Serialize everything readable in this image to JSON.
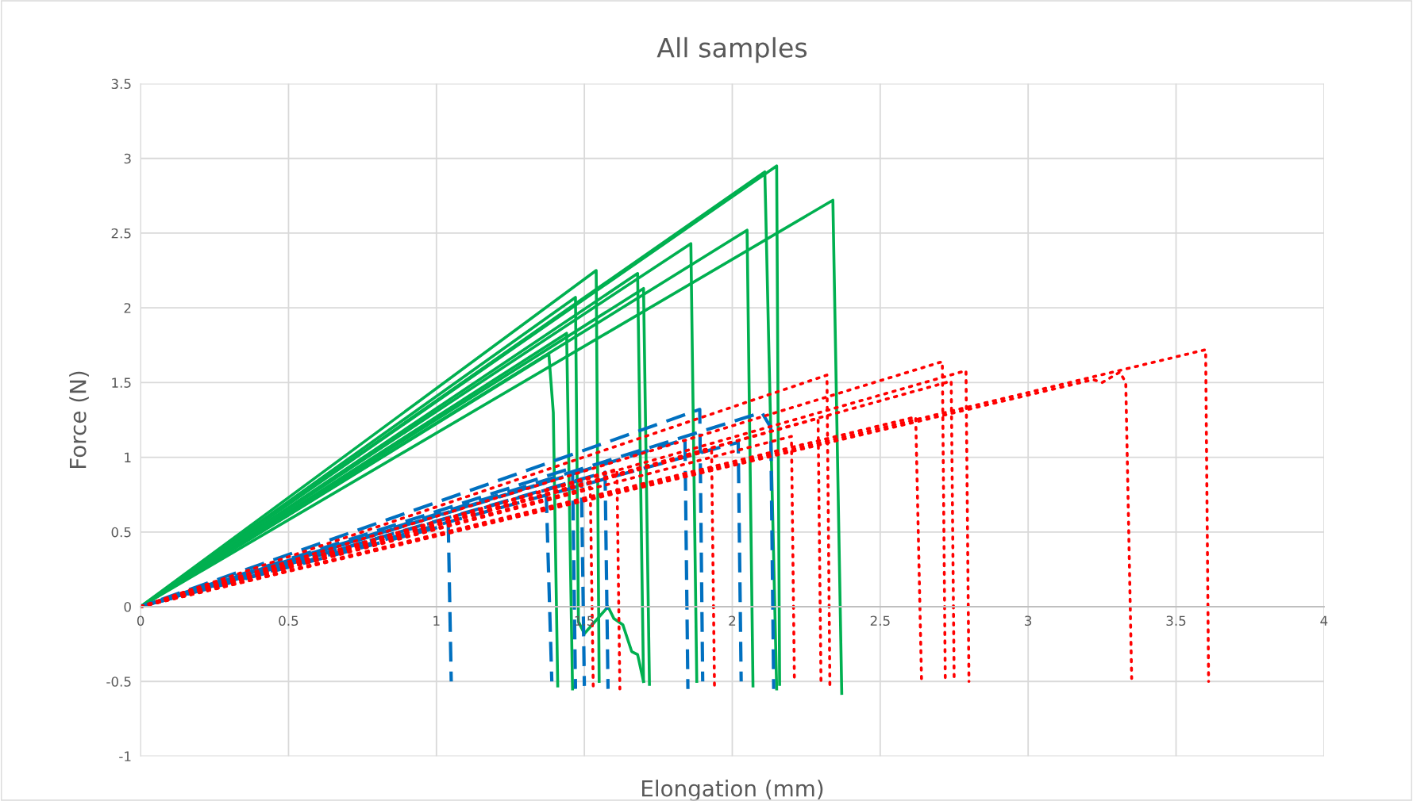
{
  "chart_data": {
    "type": "line",
    "title": "All samples",
    "xlabel": "Elongation (mm)",
    "ylabel": "Force (N)",
    "xlim": [
      0,
      4
    ],
    "xticks": [
      0,
      0.5,
      1,
      1.5,
      2,
      2.5,
      3,
      3.5,
      4
    ],
    "ylim": [
      -1,
      3.5
    ],
    "yticks": [
      -1,
      -0.5,
      0,
      0.5,
      1,
      1.5,
      2,
      2.5,
      3,
      3.5
    ],
    "grid": true,
    "marker": "none",
    "series": [
      {
        "color": "#00b050",
        "line_style": "solid",
        "x": [
          0,
          1.38,
          1.395,
          1.41
        ],
        "values": [
          0,
          1.69,
          1.3,
          -0.53
        ]
      },
      {
        "color": "#00b050",
        "line_style": "solid",
        "x": [
          0,
          1.44,
          1.46
        ],
        "values": [
          0,
          1.83,
          -0.55
        ]
      },
      {
        "color": "#00b050",
        "line_style": "solid",
        "x": [
          0,
          1.47,
          1.48,
          1.5,
          1.58,
          1.6,
          1.63,
          1.66,
          1.68,
          1.7
        ],
        "values": [
          0,
          2.07,
          -0.1,
          -0.18,
          0,
          -0.08,
          -0.12,
          -0.3,
          -0.32,
          -0.5
        ]
      },
      {
        "color": "#00b050",
        "line_style": "solid",
        "x": [
          0,
          1.54,
          1.55
        ],
        "values": [
          0,
          2.25,
          -0.5
        ]
      },
      {
        "color": "#00b050",
        "line_style": "solid",
        "x": [
          0,
          1.68,
          1.7
        ],
        "values": [
          0,
          2.23,
          -0.5
        ]
      },
      {
        "color": "#00b050",
        "line_style": "solid",
        "x": [
          0,
          1.7,
          1.72
        ],
        "values": [
          0,
          2.13,
          -0.52
        ]
      },
      {
        "color": "#00b050",
        "line_style": "solid",
        "x": [
          0,
          1.86,
          1.88
        ],
        "values": [
          0,
          2.43,
          -0.5
        ]
      },
      {
        "color": "#00b050",
        "line_style": "solid",
        "x": [
          0,
          2.05,
          2.07
        ],
        "values": [
          0,
          2.52,
          -0.53
        ]
      },
      {
        "color": "#00b050",
        "line_style": "solid",
        "x": [
          0,
          2.11,
          2.15
        ],
        "values": [
          0,
          2.91,
          -0.55
        ]
      },
      {
        "color": "#00b050",
        "line_style": "solid",
        "x": [
          0,
          2.15,
          2.16
        ],
        "values": [
          0,
          2.95,
          -0.52
        ]
      },
      {
        "color": "#00b050",
        "line_style": "solid",
        "x": [
          0,
          2.34,
          2.37
        ],
        "values": [
          0,
          2.72,
          -0.58
        ]
      },
      {
        "color": "#0070c0",
        "line_style": "dashed",
        "x": [
          0,
          1.04,
          1.05
        ],
        "values": [
          0,
          0.55,
          -0.5
        ]
      },
      {
        "color": "#0070c0",
        "line_style": "dashed",
        "x": [
          0,
          1.37,
          1.39
        ],
        "values": [
          0,
          0.83,
          -0.5
        ]
      },
      {
        "color": "#0070c0",
        "line_style": "dashed",
        "x": [
          0,
          1.46,
          1.47
        ],
        "values": [
          0,
          0.93,
          -0.55
        ]
      },
      {
        "color": "#0070c0",
        "line_style": "dashed",
        "x": [
          0,
          1.49,
          1.5
        ],
        "values": [
          0,
          0.85,
          -0.53
        ]
      },
      {
        "color": "#0070c0",
        "line_style": "dashed",
        "x": [
          0,
          1.57,
          1.58
        ],
        "values": [
          0,
          0.9,
          -0.55
        ]
      },
      {
        "color": "#0070c0",
        "line_style": "dashed",
        "x": [
          0,
          1.84,
          1.85
        ],
        "values": [
          0,
          1.12,
          -0.55
        ]
      },
      {
        "color": "#0070c0",
        "line_style": "dashed",
        "x": [
          0,
          1.89,
          1.9
        ],
        "values": [
          0,
          1.32,
          -0.5
        ]
      },
      {
        "color": "#0070c0",
        "line_style": "dashed",
        "x": [
          0,
          2.02,
          2.03
        ],
        "values": [
          0,
          1.1,
          -0.5
        ]
      },
      {
        "color": "#0070c0",
        "line_style": "dashed",
        "x": [
          0,
          2.1,
          2.13,
          2.14
        ],
        "values": [
          0,
          1.3,
          1.2,
          -0.55
        ]
      },
      {
        "color": "#ff0000",
        "line_style": "dotted",
        "x": [
          0,
          1.52,
          1.53
        ],
        "values": [
          0,
          0.8,
          -0.53
        ]
      },
      {
        "color": "#ff0000",
        "line_style": "dotted",
        "x": [
          0,
          1.61,
          1.62
        ],
        "values": [
          0,
          0.92,
          -0.55
        ]
      },
      {
        "color": "#ff0000",
        "line_style": "dotted",
        "x": [
          0,
          1.93,
          1.94
        ],
        "values": [
          0,
          1.05,
          -0.56
        ]
      },
      {
        "color": "#ff0000",
        "line_style": "dotted",
        "x": [
          0,
          2.2,
          2.21
        ],
        "values": [
          0,
          1.14,
          -0.5
        ]
      },
      {
        "color": "#ff0000",
        "line_style": "dotted",
        "x": [
          0,
          2.29,
          2.3
        ],
        "values": [
          0,
          1.26,
          -0.53
        ]
      },
      {
        "color": "#ff0000",
        "line_style": "dotted",
        "x": [
          0,
          2.32,
          2.33
        ],
        "values": [
          0,
          1.55,
          -0.55
        ]
      },
      {
        "color": "#ff0000",
        "line_style": "dotted",
        "x": [
          0,
          2.62,
          2.64
        ],
        "values": [
          0,
          1.27,
          -0.52
        ]
      },
      {
        "color": "#ff0000",
        "line_style": "dotted",
        "x": [
          0,
          2.71,
          2.72
        ],
        "values": [
          0,
          1.64,
          -0.5
        ]
      },
      {
        "color": "#ff0000",
        "line_style": "dotted",
        "x": [
          0,
          2.74,
          2.75
        ],
        "values": [
          0,
          1.51,
          -0.5
        ]
      },
      {
        "color": "#ff0000",
        "line_style": "dotted",
        "x": [
          0,
          2.79,
          2.8
        ],
        "values": [
          0,
          1.58,
          -0.5
        ]
      },
      {
        "color": "#ff0000",
        "line_style": "dotted",
        "x": [
          0,
          3.22,
          3.25,
          3.31,
          3.33,
          3.35
        ],
        "values": [
          0,
          1.52,
          1.5,
          1.57,
          1.5,
          -0.48
        ]
      },
      {
        "color": "#ff0000",
        "line_style": "dotted",
        "x": [
          0,
          3.6,
          3.61
        ],
        "values": [
          0,
          1.72,
          -0.5
        ]
      }
    ]
  }
}
